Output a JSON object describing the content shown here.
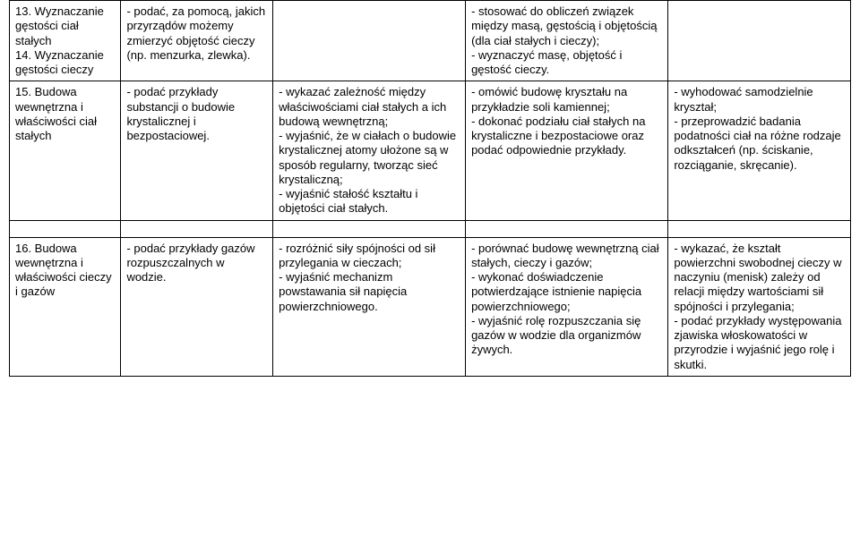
{
  "rows": [
    {
      "c1": "13. Wyznaczanie gęstości ciał stałych\n14. Wyznaczanie gęstości cieczy",
      "c2": "- podać, za pomocą, jakich przyrządów możemy zmierzyć objętość cieczy (np. menzurka, zlewka).",
      "c3": "",
      "c4": "- stosować do obliczeń związek między masą, gęstością i objętością (dla ciał stałych i cieczy);\n- wyznaczyć masę, objętość i gęstość cieczy.",
      "c5": ""
    },
    {
      "c1": "15. Budowa wewnętrzna i właściwości ciał stałych",
      "c2": "- podać przykłady substancji o budowie krystalicznej i bezpostaciowej.",
      "c3": "- wykazać zależność między właściwościami ciał stałych a ich budową wewnętrzną;\n- wyjaśnić, że w ciałach o budowie krystalicznej atomy ułożone są w sposób regularny, tworząc sieć krystaliczną;\n- wyjaśnić stałość kształtu i objętości ciał stałych.",
      "c4": "- omówić budowę kryształu na przykładzie soli kamiennej;\n- dokonać podziału ciał stałych na krystaliczne i bezpostaciowe oraz podać odpowiednie przykłady.",
      "c5": "- wyhodować samodzielnie kryształ;\n- przeprowadzić badania podatności ciał na różne rodzaje odkształceń (np. ściskanie, rozciąganie, skręcanie)."
    },
    {
      "c1": "16. Budowa wewnętrzna i właściwości cieczy i gazów",
      "c2": "- podać przykłady gazów rozpuszczalnych w wodzie.",
      "c3": "- rozróżnić siły spójności od sił przylegania w cieczach;\n- wyjaśnić mechanizm powstawania sił napięcia powierzchniowego.",
      "c4": "- porównać budowę wewnętrzną ciał stałych, cieczy i gazów;\n- wykonać doświadczenie potwierdzające istnienie napięcia powierzchniowego;\n- wyjaśnić rolę rozpuszczania się gazów w wodzie dla organizmów żywych.",
      "c5": "- wykazać, że kształt powierzchni swobodnej cieczy w naczyniu (menisk) zależy od relacji między wartościami sił spójności i przylegania;\n- podać przykłady występowania zjawiska włoskowatości w przyrodzie i wyjaśnić jego rolę i skutki."
    }
  ]
}
